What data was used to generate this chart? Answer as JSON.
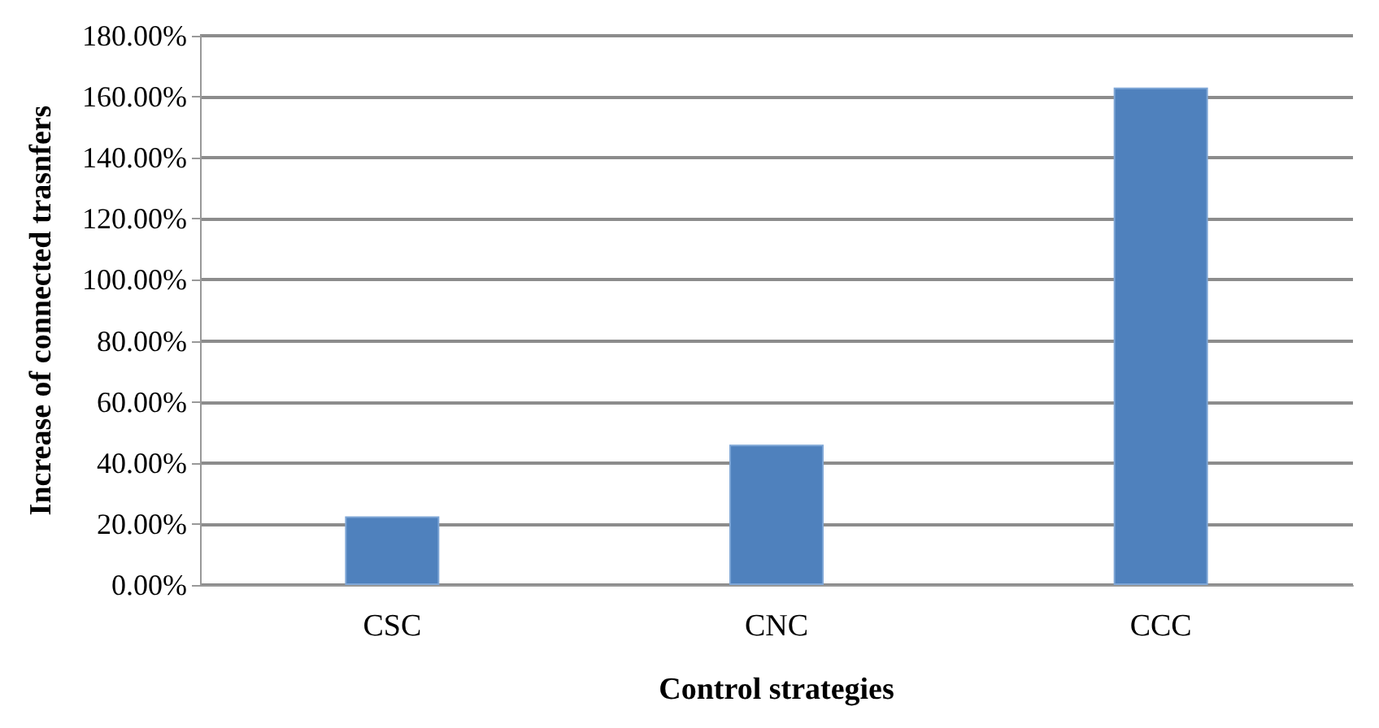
{
  "chart_data": {
    "type": "bar",
    "xlabel": "Control strategies",
    "ylabel": "Increase of connected trasnfers",
    "categories": [
      "CSC",
      "CNC",
      "CCC"
    ],
    "values": [
      22.5,
      46,
      163
    ],
    "color": "#4f81bd",
    "ylim": [
      0,
      180
    ],
    "yticks": [
      {
        "value": 0,
        "label": "0.00%"
      },
      {
        "value": 20,
        "label": "20.00%"
      },
      {
        "value": 40,
        "label": "40.00%"
      },
      {
        "value": 60,
        "label": "60.00%"
      },
      {
        "value": 80,
        "label": "80.00%"
      },
      {
        "value": 100,
        "label": "100.00%"
      },
      {
        "value": 120,
        "label": "120.00%"
      },
      {
        "value": 140,
        "label": "140.00%"
      },
      {
        "value": 160,
        "label": "160.00%"
      },
      {
        "value": 180,
        "label": "180.00%"
      }
    ],
    "grid": true
  }
}
